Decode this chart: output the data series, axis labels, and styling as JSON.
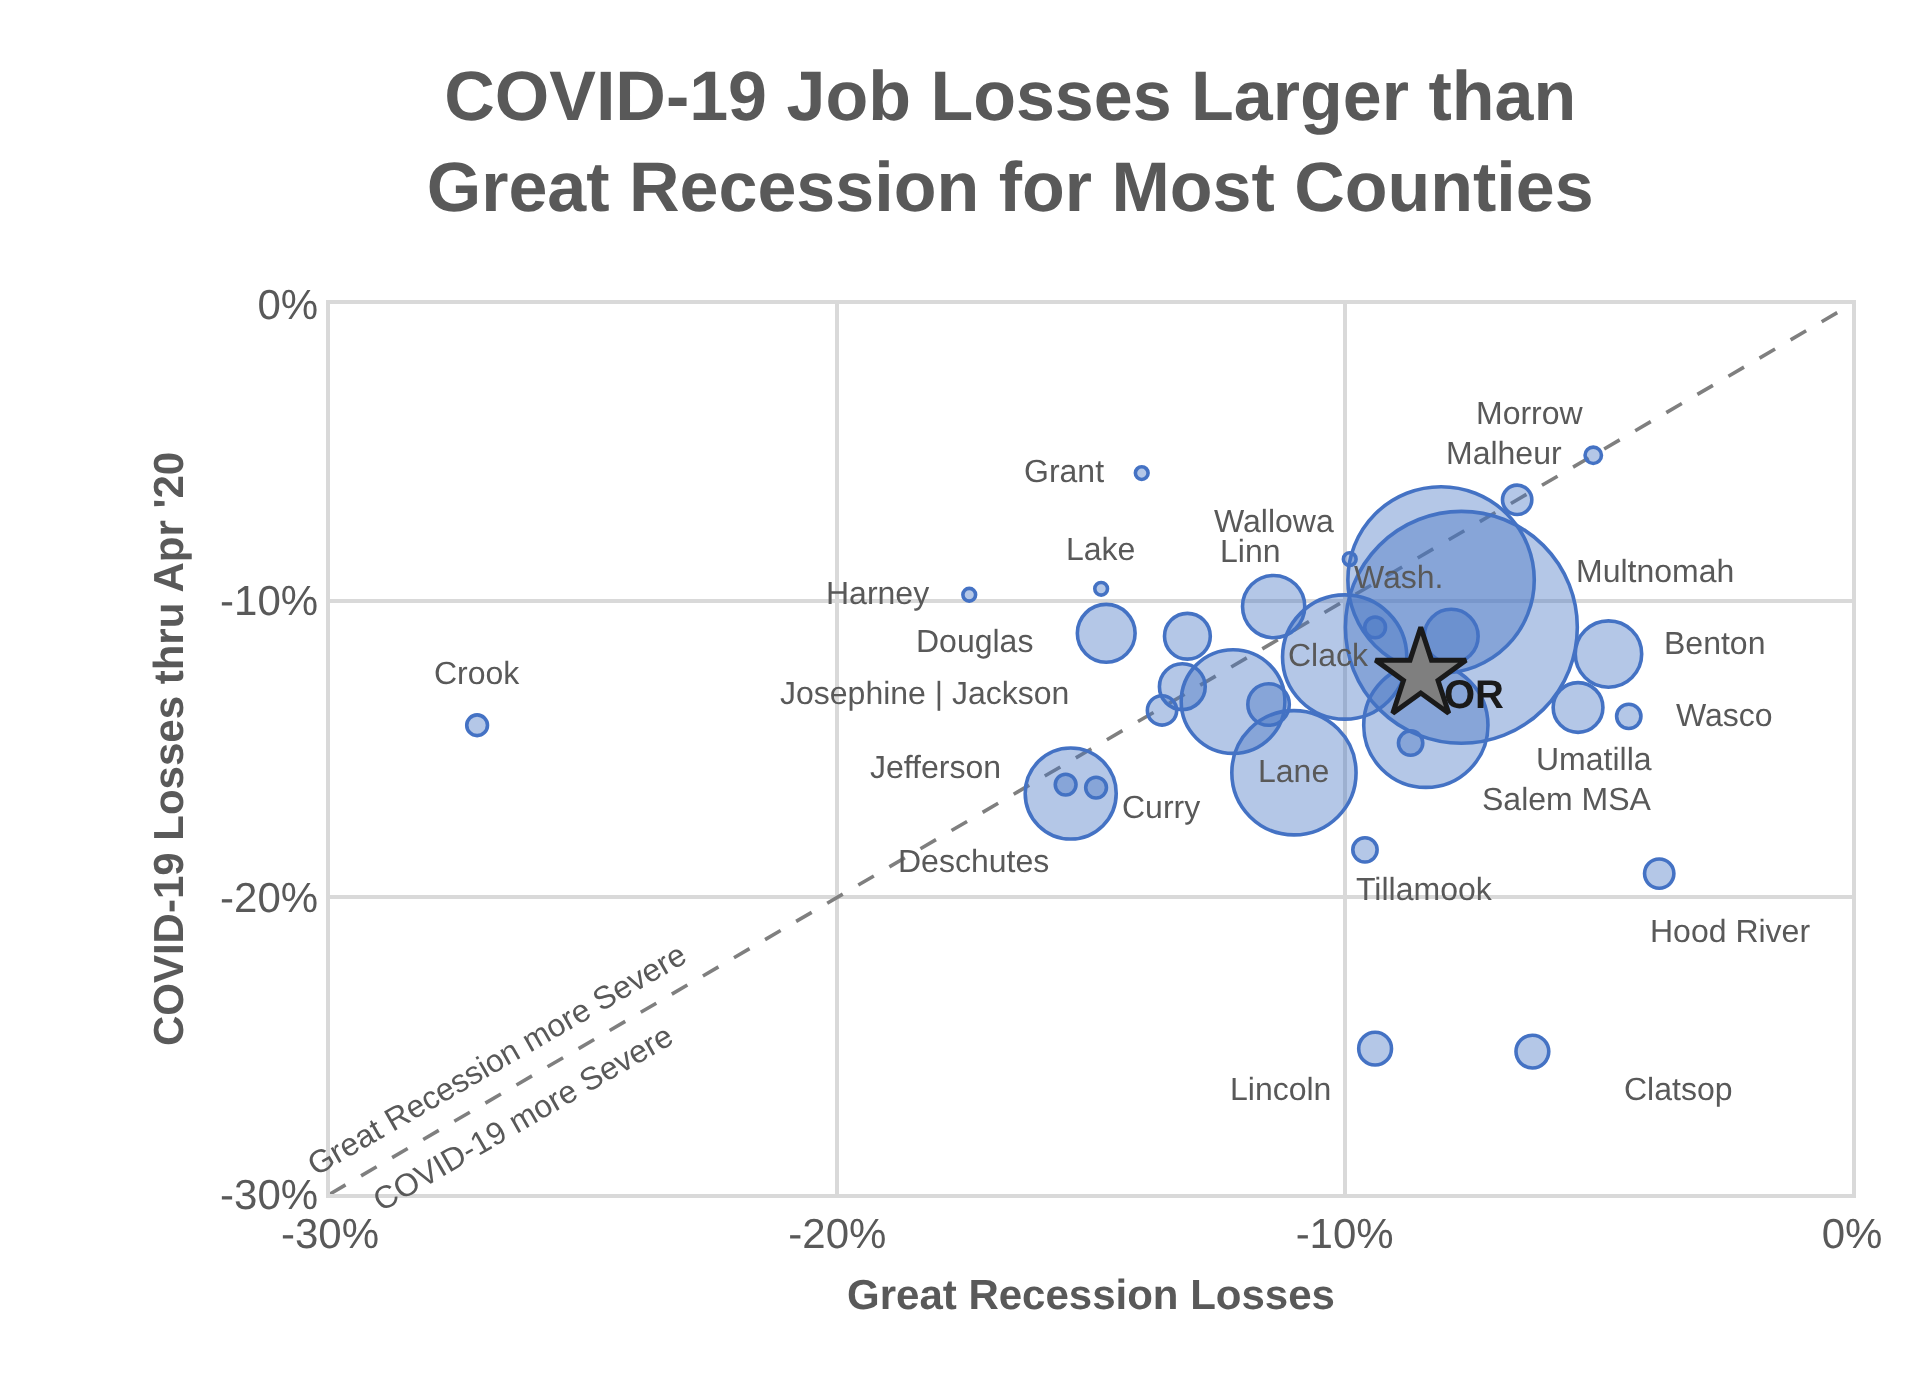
{
  "chart_data": {
    "type": "bubble",
    "title": "COVID-19 Job Losses Larger than Great Recession for Most Counties",
    "xlabel": "Great Recession Losses",
    "ylabel": "COVID-19 Losses thru Apr '20",
    "xlim": [
      -30,
      0
    ],
    "ylim": [
      -30,
      0
    ],
    "xticks": [
      {
        "value": -30,
        "label": "-30%"
      },
      {
        "value": -20,
        "label": "-20%"
      },
      {
        "value": -10,
        "label": "-10%"
      },
      {
        "value": 0,
        "label": "0%"
      }
    ],
    "yticks": [
      {
        "value": -30,
        "label": "-30%"
      },
      {
        "value": -20,
        "label": "-20%"
      },
      {
        "value": -10,
        "label": "-10%"
      },
      {
        "value": 0,
        "label": "0%"
      }
    ],
    "grid": true,
    "series": [
      {
        "type": "line",
        "color": "#7f7f7f",
        "line_style": "dashed",
        "marker": "none",
        "x": [
          -30,
          0
        ],
        "values": [
          -30,
          0
        ]
      },
      {
        "color": "#4472c4",
        "marker": "circle",
        "x": [
          -27.1,
          -17.4,
          -14.0,
          -14.8,
          -14.7,
          -15.5,
          -14.9,
          -15.4,
          -13.1,
          -13.2,
          -13.6,
          -12.2,
          -11.5,
          -11.4,
          -9.9,
          -10.0,
          -11.0,
          -8.1,
          -7.7,
          -8.4,
          -8.7,
          -7.9,
          -9.4,
          -6.6,
          -5.1,
          -4.8,
          -5.4,
          -4.4,
          -9.6,
          -3.8,
          -9.4,
          -6.3
        ],
        "values": [
          -14.2,
          -9.8,
          -5.7,
          -9.6,
          -11.1,
          -16.2,
          -16.3,
          -16.5,
          -11.2,
          -12.9,
          -13.7,
          -13.4,
          -13.5,
          -10.2,
          -8.6,
          -11.9,
          -15.8,
          -9.3,
          -10.9,
          -14.2,
          -14.8,
          -11.2,
          -10.9,
          -6.6,
          -5.1,
          -11.8,
          -13.6,
          -13.9,
          -18.4,
          -19.2,
          -25.1,
          -25.2
        ],
        "sizes": [
          0.008,
          0.003,
          0.003,
          0.003,
          0.062,
          0.008,
          0.008,
          0.154,
          0.039,
          0.039,
          0.016,
          0.2,
          0.032,
          0.072,
          0.003,
          0.287,
          0.287,
          0.646,
          1,
          0.287,
          0.011,
          0.054,
          0.008,
          0.016,
          0.005,
          0.082,
          0.046,
          0.011,
          0.011,
          0.016,
          0.02,
          0.02
        ]
      },
      {
        "type": "scatter",
        "name": "OR",
        "color": "#7f7f7f",
        "marker": "star",
        "x": [
          -8.5
        ],
        "values": [
          -12.5
        ]
      }
    ],
    "annotations": [
      {
        "text": "Crook",
        "x": -27.1,
        "y": -14.2
      },
      {
        "text": "Harney",
        "x": -17.4,
        "y": -9.8
      },
      {
        "text": "Grant",
        "x": -14.0,
        "y": -5.7
      },
      {
        "text": "Lake",
        "x": -14.8,
        "y": -9.6
      },
      {
        "text": "Douglas",
        "x": -14.7,
        "y": -11.1
      },
      {
        "text": "Josephine | Jackson",
        "x": -13.6,
        "y": -13.7
      },
      {
        "text": "Jefferson",
        "x": -15.5,
        "y": -16.2
      },
      {
        "text": "Curry",
        "x": -14.9,
        "y": -16.3
      },
      {
        "text": "Deschutes",
        "x": -15.4,
        "y": -16.5
      },
      {
        "text": "Wallowa",
        "x": -9.9,
        "y": -8.6
      },
      {
        "text": "Linn",
        "x": -11.4,
        "y": -10.2
      },
      {
        "text": "Clack",
        "x": -10.0,
        "y": -11.9
      },
      {
        "text": "Lane",
        "x": -11.0,
        "y": -15.8
      },
      {
        "text": "Wash.",
        "x": -8.1,
        "y": -9.3
      },
      "Multnomah",
      {
        "text": "Morrow",
        "x": -5.1,
        "y": -5.1
      },
      {
        "text": "Malheur",
        "x": -6.6,
        "y": -6.6
      },
      {
        "text": "Benton",
        "x": -4.8,
        "y": -11.8
      },
      {
        "text": "Wasco",
        "x": -4.4,
        "y": -13.9
      },
      {
        "text": "Umatilla",
        "x": -5.4,
        "y": -13.6
      },
      {
        "text": "Salem MSA",
        "x": -8.4,
        "y": -14.2
      },
      {
        "text": "Tillamook",
        "x": -9.6,
        "y": -18.4
      },
      {
        "text": "Hood River",
        "x": -3.8,
        "y": -19.2
      },
      {
        "text": "Lincoln",
        "x": -9.4,
        "y": -25.1
      },
      {
        "text": "Clatsop",
        "x": -6.3,
        "y": -25.2
      },
      {
        "text": "Great Recession more Severe",
        "x": -26.7,
        "y": -26.7
      },
      {
        "text": "COVID-19 more Severe",
        "x": -26.4,
        "y": -26.4
      }
    ]
  }
}
